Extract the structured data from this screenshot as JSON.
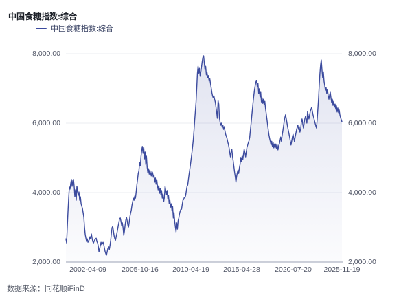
{
  "header": {
    "title": "中国食糖指数:综合"
  },
  "legend": {
    "label": "中国食糖指数:综合"
  },
  "source": {
    "text": "数据来源：同花顺iFinD"
  },
  "colors": {
    "line": "#3C4B9E",
    "area_top": "rgba(70,85,165,0.16)",
    "area_bottom": "rgba(70,85,165,0.02)",
    "grid": "#ebecf2",
    "axis": "#9aa0b4",
    "tick_text": "#4d5263",
    "title_text": "#1d2129",
    "legend_text": "#3c4566"
  },
  "chart_data": {
    "type": "area",
    "title": "中国食糖指数:综合",
    "series_name": "中国食糖指数:综合",
    "xlabel": "",
    "ylabel": "",
    "ylim": [
      2000,
      8000
    ],
    "grid": true,
    "legend_position": "top-left",
    "y_ticks": [
      {
        "value": 2000,
        "label": "2,000.00"
      },
      {
        "value": 4000,
        "label": "4,000.00"
      },
      {
        "value": 6000,
        "label": "6,000.00"
      },
      {
        "value": 8000,
        "label": "8,000.00"
      }
    ],
    "x_ticks": [
      {
        "label": "2002-04-09",
        "pos": 32
      },
      {
        "label": "2005-10-16",
        "pos": 108
      },
      {
        "label": "2010-04-19",
        "pos": 182
      },
      {
        "label": "2015-04-28",
        "pos": 256
      },
      {
        "label": "2020-07-20",
        "pos": 331
      },
      {
        "label": "2025-11-19",
        "pos": 402
      }
    ],
    "points": [
      [
        0,
        2670
      ],
      [
        1,
        2550
      ],
      [
        2,
        3010
      ],
      [
        3,
        3450
      ],
      [
        4,
        3840
      ],
      [
        5,
        4160
      ],
      [
        6,
        4100
      ],
      [
        7,
        4260
      ],
      [
        8,
        4380
      ],
      [
        9,
        4180
      ],
      [
        10,
        4340
      ],
      [
        11,
        4380
      ],
      [
        12,
        4180
      ],
      [
        13,
        3880
      ],
      [
        14,
        4080
      ],
      [
        15,
        3780
      ],
      [
        16,
        4180
      ],
      [
        17,
        4040
      ],
      [
        18,
        3920
      ],
      [
        19,
        4020
      ],
      [
        20,
        3780
      ],
      [
        21,
        3880
      ],
      [
        22,
        3680
      ],
      [
        24,
        3540
      ],
      [
        26,
        3290
      ],
      [
        27,
        2990
      ],
      [
        28,
        2790
      ],
      [
        29,
        2690
      ],
      [
        30,
        2590
      ],
      [
        31,
        2670
      ],
      [
        32,
        2570
      ],
      [
        34,
        2650
      ],
      [
        35,
        2730
      ],
      [
        36,
        2670
      ],
      [
        37,
        2810
      ],
      [
        38,
        2690
      ],
      [
        39,
        2590
      ],
      [
        40,
        2550
      ],
      [
        42,
        2650
      ],
      [
        44,
        2690
      ],
      [
        45,
        2590
      ],
      [
        46,
        2550
      ],
      [
        47,
        2460
      ],
      [
        48,
        2300
      ],
      [
        49,
        2380
      ],
      [
        50,
        2480
      ],
      [
        51,
        2570
      ],
      [
        52,
        2500
      ],
      [
        54,
        2570
      ],
      [
        55,
        2500
      ],
      [
        56,
        2400
      ],
      [
        57,
        2300
      ],
      [
        58,
        2240
      ],
      [
        59,
        2200
      ],
      [
        60,
        2300
      ],
      [
        61,
        2400
      ],
      [
        62,
        2440
      ],
      [
        63,
        2360
      ],
      [
        64,
        2480
      ],
      [
        65,
        2630
      ],
      [
        66,
        2830
      ],
      [
        67,
        2990
      ],
      [
        68,
        3030
      ],
      [
        69,
        2890
      ],
      [
        70,
        2750
      ],
      [
        71,
        2670
      ],
      [
        72,
        2630
      ],
      [
        73,
        2730
      ],
      [
        74,
        2830
      ],
      [
        75,
        2930
      ],
      [
        76,
        3050
      ],
      [
        77,
        3150
      ],
      [
        78,
        3250
      ],
      [
        79,
        3270
      ],
      [
        80,
        3170
      ],
      [
        81,
        3050
      ],
      [
        82,
        3130
      ],
      [
        83,
        2990
      ],
      [
        84,
        2770
      ],
      [
        85,
        2890
      ],
      [
        86,
        3070
      ],
      [
        87,
        3210
      ],
      [
        88,
        3290
      ],
      [
        89,
        3190
      ],
      [
        90,
        3070
      ],
      [
        91,
        3010
      ],
      [
        92,
        3150
      ],
      [
        93,
        3310
      ],
      [
        94,
        3410
      ],
      [
        95,
        3500
      ],
      [
        96,
        3640
      ],
      [
        97,
        3740
      ],
      [
        98,
        3840
      ],
      [
        99,
        3780
      ],
      [
        100,
        3900
      ],
      [
        101,
        3840
      ],
      [
        102,
        4020
      ],
      [
        103,
        4220
      ],
      [
        104,
        4380
      ],
      [
        105,
        4550
      ],
      [
        106,
        4630
      ],
      [
        107,
        4870
      ],
      [
        108,
        4770
      ],
      [
        109,
        5030
      ],
      [
        110,
        5210
      ],
      [
        111,
        5330
      ],
      [
        112,
        5130
      ],
      [
        113,
        5310
      ],
      [
        114,
        4970
      ],
      [
        115,
        5170
      ],
      [
        116,
        4810
      ],
      [
        117,
        5050
      ],
      [
        118,
        4730
      ],
      [
        119,
        4570
      ],
      [
        120,
        4690
      ],
      [
        121,
        4530
      ],
      [
        122,
        4650
      ],
      [
        123,
        4550
      ],
      [
        124,
        4480
      ],
      [
        125,
        4610
      ],
      [
        126,
        4570
      ],
      [
        127,
        4440
      ],
      [
        128,
        4510
      ],
      [
        129,
        4300
      ],
      [
        130,
        4420
      ],
      [
        131,
        4240
      ],
      [
        132,
        4380
      ],
      [
        133,
        4200
      ],
      [
        134,
        4080
      ],
      [
        135,
        4200
      ],
      [
        136,
        3980
      ],
      [
        137,
        4120
      ],
      [
        138,
        3940
      ],
      [
        139,
        4060
      ],
      [
        140,
        3840
      ],
      [
        141,
        3960
      ],
      [
        142,
        3740
      ],
      [
        143,
        3860
      ],
      [
        144,
        4180
      ],
      [
        145,
        4060
      ],
      [
        146,
        3940
      ],
      [
        147,
        4060
      ],
      [
        148,
        3820
      ],
      [
        149,
        3920
      ],
      [
        150,
        3680
      ],
      [
        151,
        3780
      ],
      [
        152,
        3580
      ],
      [
        153,
        3680
      ],
      [
        154,
        3490
      ],
      [
        155,
        3600
      ],
      [
        156,
        3270
      ],
      [
        157,
        3430
      ],
      [
        158,
        3170
      ],
      [
        159,
        3010
      ],
      [
        160,
        2870
      ],
      [
        161,
        3130
      ],
      [
        162,
        2950
      ],
      [
        163,
        3190
      ],
      [
        164,
        3270
      ],
      [
        165,
        3390
      ],
      [
        166,
        3470
      ],
      [
        167,
        3520
      ],
      [
        168,
        3520
      ],
      [
        169,
        3660
      ],
      [
        170,
        3780
      ],
      [
        171,
        3800
      ],
      [
        172,
        3860
      ],
      [
        173,
        3860
      ],
      [
        174,
        3920
      ],
      [
        175,
        4060
      ],
      [
        176,
        4180
      ],
      [
        177,
        4220
      ],
      [
        178,
        4380
      ],
      [
        179,
        4530
      ],
      [
        180,
        4670
      ],
      [
        181,
        4830
      ],
      [
        182,
        4990
      ],
      [
        183,
        5150
      ],
      [
        184,
        5330
      ],
      [
        185,
        5520
      ],
      [
        186,
        5780
      ],
      [
        187,
        6080
      ],
      [
        188,
        6340
      ],
      [
        189,
        6610
      ],
      [
        190,
        7010
      ],
      [
        191,
        7440
      ],
      [
        192,
        7640
      ],
      [
        193,
        7440
      ],
      [
        194,
        7580
      ],
      [
        195,
        7350
      ],
      [
        196,
        7480
      ],
      [
        197,
        7620
      ],
      [
        198,
        7780
      ],
      [
        199,
        7900
      ],
      [
        200,
        7940
      ],
      [
        201,
        7740
      ],
      [
        202,
        7540
      ],
      [
        203,
        7640
      ],
      [
        204,
        7390
      ],
      [
        205,
        7460
      ],
      [
        206,
        7310
      ],
      [
        207,
        7370
      ],
      [
        208,
        7210
      ],
      [
        209,
        7290
      ],
      [
        210,
        7150
      ],
      [
        211,
        7030
      ],
      [
        212,
        6890
      ],
      [
        213,
        6790
      ],
      [
        214,
        6730
      ],
      [
        215,
        6790
      ],
      [
        216,
        6690
      ],
      [
        217,
        6610
      ],
      [
        218,
        6470
      ],
      [
        219,
        6320
      ],
      [
        220,
        6140
      ],
      [
        221,
        6650
      ],
      [
        222,
        6550
      ],
      [
        223,
        6140
      ],
      [
        224,
        6020
      ],
      [
        225,
        5940
      ],
      [
        226,
        6000
      ],
      [
        227,
        5880
      ],
      [
        228,
        5940
      ],
      [
        229,
        5820
      ],
      [
        230,
        5900
      ],
      [
        231,
        5780
      ],
      [
        232,
        5680
      ],
      [
        233,
        5620
      ],
      [
        234,
        5560
      ],
      [
        235,
        5470
      ],
      [
        236,
        5390
      ],
      [
        237,
        5290
      ],
      [
        238,
        5150
      ],
      [
        239,
        5030
      ],
      [
        240,
        5170
      ],
      [
        241,
        5250
      ],
      [
        242,
        5050
      ],
      [
        243,
        4910
      ],
      [
        244,
        4750
      ],
      [
        245,
        4590
      ],
      [
        246,
        4460
      ],
      [
        247,
        4300
      ],
      [
        248,
        4460
      ],
      [
        249,
        4570
      ],
      [
        250,
        4650
      ],
      [
        251,
        4550
      ],
      [
        252,
        4710
      ],
      [
        253,
        4810
      ],
      [
        254,
        5010
      ],
      [
        255,
        4890
      ],
      [
        256,
        5050
      ],
      [
        257,
        4950
      ],
      [
        258,
        5110
      ],
      [
        259,
        5250
      ],
      [
        260,
        5150
      ],
      [
        261,
        5030
      ],
      [
        262,
        5170
      ],
      [
        263,
        5310
      ],
      [
        264,
        5370
      ],
      [
        265,
        5440
      ],
      [
        266,
        5500
      ],
      [
        267,
        5600
      ],
      [
        268,
        5800
      ],
      [
        269,
        6000
      ],
      [
        270,
        6220
      ],
      [
        271,
        6420
      ],
      [
        272,
        6630
      ],
      [
        273,
        6810
      ],
      [
        274,
        6970
      ],
      [
        275,
        7090
      ],
      [
        276,
        7190
      ],
      [
        277,
        7230
      ],
      [
        278,
        7050
      ],
      [
        279,
        7150
      ],
      [
        280,
        6850
      ],
      [
        281,
        6990
      ],
      [
        282,
        6750
      ],
      [
        283,
        6890
      ],
      [
        284,
        6610
      ],
      [
        285,
        6730
      ],
      [
        286,
        6570
      ],
      [
        287,
        6690
      ],
      [
        288,
        6530
      ],
      [
        289,
        6630
      ],
      [
        290,
        6420
      ],
      [
        291,
        6280
      ],
      [
        292,
        6120
      ],
      [
        293,
        5960
      ],
      [
        294,
        5800
      ],
      [
        295,
        5660
      ],
      [
        296,
        5560
      ],
      [
        297,
        5470
      ],
      [
        298,
        5370
      ],
      [
        299,
        5480
      ],
      [
        300,
        5330
      ],
      [
        301,
        5440
      ],
      [
        302,
        5290
      ],
      [
        303,
        5400
      ],
      [
        304,
        5290
      ],
      [
        305,
        5400
      ],
      [
        306,
        5270
      ],
      [
        307,
        5370
      ],
      [
        308,
        5230
      ],
      [
        309,
        5350
      ],
      [
        310,
        5400
      ],
      [
        311,
        5500
      ],
      [
        312,
        5600
      ],
      [
        313,
        5480
      ],
      [
        314,
        5640
      ],
      [
        315,
        5760
      ],
      [
        316,
        5900
      ],
      [
        317,
        6040
      ],
      [
        318,
        6160
      ],
      [
        319,
        6240
      ],
      [
        320,
        6140
      ],
      [
        321,
        6020
      ],
      [
        322,
        5900
      ],
      [
        323,
        5800
      ],
      [
        324,
        5700
      ],
      [
        325,
        5600
      ],
      [
        326,
        5480
      ],
      [
        327,
        5370
      ],
      [
        328,
        5480
      ],
      [
        329,
        5600
      ],
      [
        330,
        5680
      ],
      [
        331,
        5580
      ],
      [
        332,
        5470
      ],
      [
        333,
        5600
      ],
      [
        334,
        5700
      ],
      [
        335,
        5800
      ],
      [
        336,
        5880
      ],
      [
        337,
        5940
      ],
      [
        338,
        5820
      ],
      [
        339,
        5900
      ],
      [
        340,
        5740
      ],
      [
        341,
        5840
      ],
      [
        342,
        6040
      ],
      [
        343,
        6120
      ],
      [
        344,
        5980
      ],
      [
        345,
        5860
      ],
      [
        346,
        6000
      ],
      [
        347,
        6120
      ],
      [
        348,
        6200
      ],
      [
        349,
        6100
      ],
      [
        350,
        6000
      ],
      [
        351,
        6340
      ],
      [
        352,
        6220
      ],
      [
        353,
        6120
      ],
      [
        354,
        6240
      ],
      [
        355,
        6340
      ],
      [
        356,
        6400
      ],
      [
        357,
        6460
      ],
      [
        358,
        6340
      ],
      [
        359,
        6240
      ],
      [
        360,
        6160
      ],
      [
        361,
        6080
      ],
      [
        362,
        6000
      ],
      [
        363,
        5920
      ],
      [
        364,
        5860
      ],
      [
        365,
        6100
      ],
      [
        366,
        6400
      ],
      [
        367,
        6710
      ],
      [
        368,
        7090
      ],
      [
        369,
        7430
      ],
      [
        370,
        7680
      ],
      [
        371,
        7820
      ],
      [
        372,
        7540
      ],
      [
        373,
        7310
      ],
      [
        374,
        7480
      ],
      [
        375,
        7210
      ],
      [
        376,
        7090
      ],
      [
        377,
        6950
      ],
      [
        378,
        7030
      ],
      [
        379,
        6850
      ],
      [
        380,
        6970
      ],
      [
        381,
        6790
      ],
      [
        382,
        6690
      ],
      [
        383,
        6810
      ],
      [
        384,
        6890
      ],
      [
        385,
        6730
      ],
      [
        386,
        6590
      ],
      [
        387,
        6690
      ],
      [
        388,
        6510
      ],
      [
        389,
        6630
      ],
      [
        390,
        6460
      ],
      [
        391,
        6550
      ],
      [
        392,
        6400
      ],
      [
        393,
        6500
      ],
      [
        394,
        6320
      ],
      [
        395,
        6440
      ],
      [
        396,
        6300
      ],
      [
        397,
        6380
      ],
      [
        398,
        6240
      ],
      [
        399,
        6160
      ],
      [
        400,
        6100
      ],
      [
        401,
        6040
      ]
    ]
  }
}
